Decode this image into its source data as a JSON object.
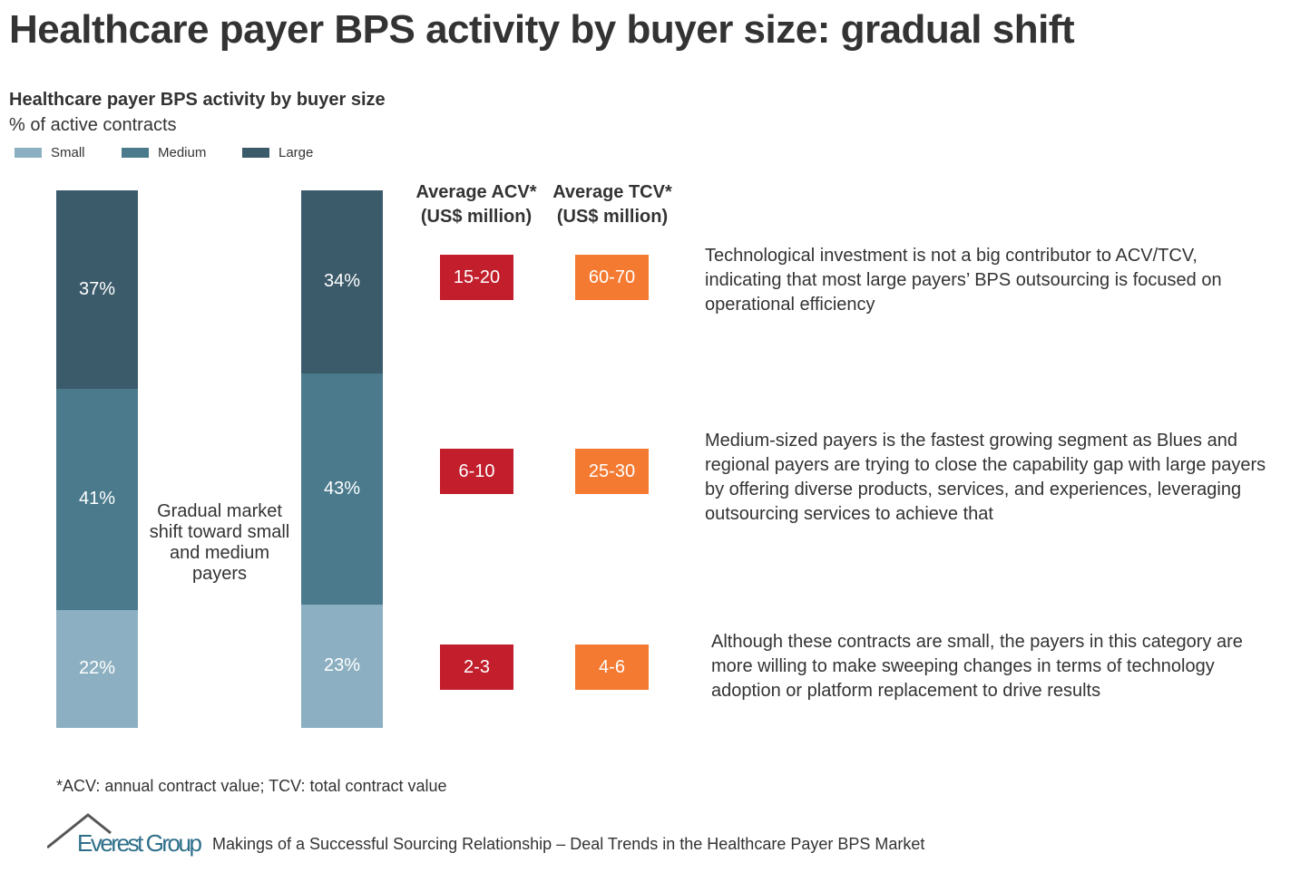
{
  "title": "Healthcare payer BPS activity by buyer size: gradual shift",
  "chart_data": {
    "type": "bar",
    "stacked": true,
    "title": "Healthcare payer BPS activity by buyer size",
    "ylabel": "% of active contracts",
    "legend_position": "top-left",
    "categories": [
      "",
      ""
    ],
    "series": [
      {
        "name": "Small",
        "color": "#8cb0c1",
        "values": [
          22,
          23
        ]
      },
      {
        "name": "Medium",
        "color": "#4a7a8c",
        "values": [
          41,
          43
        ]
      },
      {
        "name": "Large",
        "color": "#3b5b6a",
        "values": [
          37,
          34
        ]
      }
    ],
    "ylim": [
      0,
      100
    ],
    "annotation": "Gradual market shift toward small and medium payers"
  },
  "table": {
    "acv_header": "Average ACV* (US$ million)",
    "tcv_header": "Average TCV* (US$ million)",
    "acv_color": "#c21e2c",
    "tcv_color": "#f47a32",
    "rows": [
      {
        "size": "Large",
        "acv": "15-20",
        "tcv": "60-70",
        "note": "Technological investment is not a big contributor to ACV/TCV, indicating that most large payers’ BPS outsourcing is focused on operational efficiency"
      },
      {
        "size": "Medium",
        "acv": "6-10",
        "tcv": "25-30",
        "note": "Medium-sized payers is the fastest growing segment as Blues and regional payers are trying to close the capability gap with large payers by offering diverse products, services, and experiences, leveraging outsourcing services to achieve that"
      },
      {
        "size": "Small",
        "acv": "2-3",
        "tcv": "4-6",
        "note": "Although these contracts are small, the payers in this category are more willing to make sweeping changes in terms of technology adoption or platform replacement to drive results"
      }
    ]
  },
  "footnote": "*ACV: annual contract value; TCV: total contract value",
  "logo": "Everest Group",
  "source": "Makings of a Successful Sourcing Relationship – Deal Trends in the Healthcare Payer BPS Market"
}
